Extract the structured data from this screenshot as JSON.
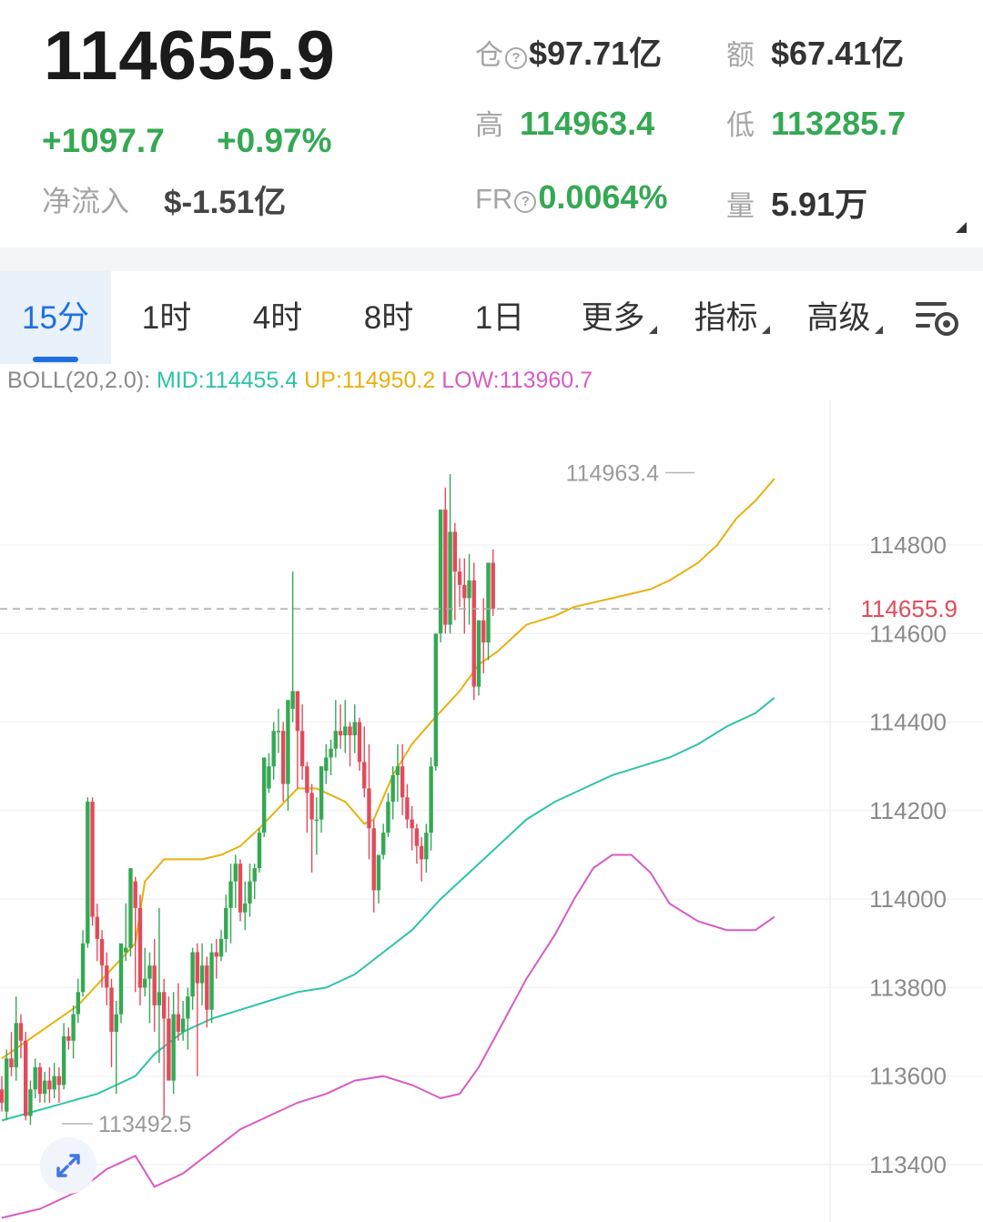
{
  "header": {
    "price": "114655.9",
    "change_abs": "+1097.7",
    "change_pct": "+0.97%",
    "net_inflow_label": "净流入",
    "net_inflow_value": "$-1.51亿",
    "open_interest_label": "仓",
    "open_interest_value": "$97.71亿",
    "turnover_label": "额",
    "turnover_value": "$67.41亿",
    "high_label": "高",
    "high_value": "114963.4",
    "low_label": "低",
    "low_value": "113285.7",
    "fr_label": "FR",
    "fr_value": "0.0064%",
    "volume_label": "量",
    "volume_value": "5.91万"
  },
  "tabs": [
    {
      "label": "15分",
      "active": true
    },
    {
      "label": "1时"
    },
    {
      "label": "4时"
    },
    {
      "label": "8时"
    },
    {
      "label": "1日"
    },
    {
      "label": "更多"
    },
    {
      "label": "指标"
    },
    {
      "label": "高级"
    }
  ],
  "boll": {
    "name": "BOLL(20,2.0):",
    "mid": "MID:114455.4",
    "up": "UP:114950.2",
    "low": "LOW:113960.7"
  },
  "colors": {
    "up": "#35a853",
    "down": "#e24b5b",
    "accent": "#1f6fe0",
    "boll_mid": "#2ec4a6",
    "boll_up": "#e8b10f",
    "boll_low": "#d85bc4"
  },
  "icons": [
    "settings-icon",
    "expand-icon"
  ],
  "chart_data": {
    "type": "candlestick",
    "y_ticks": [
      "114800",
      "114600",
      "114400",
      "114200",
      "114000",
      "113800",
      "113600",
      "113400"
    ],
    "ylim": [
      113280,
      115040
    ],
    "current_price_label": "114655.9",
    "max_label": "114963.4",
    "min_label": "113492.5",
    "candles": [
      [
        113570,
        113600,
        113540,
        113520
      ],
      [
        113520,
        113660,
        113640,
        113500
      ],
      [
        113640,
        113700,
        113620,
        113600
      ],
      [
        113620,
        113780,
        113720,
        113590
      ],
      [
        113720,
        113740,
        113680,
        113640
      ],
      [
        113680,
        113700,
        113510,
        113500
      ],
      [
        113510,
        113590,
        113570,
        113490
      ],
      [
        113570,
        113640,
        113620,
        113550
      ],
      [
        113620,
        113630,
        113560,
        113540
      ],
      [
        113560,
        113610,
        113590,
        113540
      ],
      [
        113590,
        113620,
        113570,
        113540
      ],
      [
        113570,
        113630,
        113600,
        113550
      ],
      [
        113600,
        113620,
        113580,
        113540
      ],
      [
        113580,
        113720,
        113690,
        113570
      ],
      [
        113690,
        113710,
        113680,
        113660
      ],
      [
        113680,
        113760,
        113740,
        113640
      ],
      [
        113740,
        113820,
        113790,
        113720
      ],
      [
        113790,
        113930,
        113900,
        113780
      ],
      [
        113900,
        114230,
        114220,
        113890
      ],
      [
        114220,
        114230,
        113960,
        113940
      ],
      [
        113960,
        113990,
        113910,
        113860
      ],
      [
        113910,
        113930,
        113850,
        113800
      ],
      [
        113850,
        113880,
        113800,
        113760
      ],
      [
        113800,
        113820,
        113700,
        113620
      ],
      [
        113700,
        113770,
        113740,
        113560
      ],
      [
        113740,
        113880,
        113900,
        113720
      ],
      [
        113880,
        113990,
        113890,
        113860
      ],
      [
        113890,
        114040,
        114070,
        113870
      ],
      [
        114040,
        114050,
        113980,
        113790
      ],
      [
        113980,
        114010,
        113800,
        113760
      ],
      [
        113800,
        113890,
        113820,
        113780
      ],
      [
        113820,
        113880,
        113850,
        113720
      ],
      [
        113850,
        113910,
        113760,
        113700
      ],
      [
        113760,
        113980,
        113790,
        113630
      ],
      [
        113790,
        113820,
        113730,
        113510
      ],
      [
        113730,
        113780,
        113590,
        113620
      ],
      [
        113590,
        113790,
        113740,
        113560
      ],
      [
        113740,
        113810,
        113700,
        113680
      ],
      [
        113700,
        113770,
        113730,
        113680
      ],
      [
        113730,
        113800,
        113780,
        113660
      ],
      [
        113780,
        113890,
        113880,
        113750
      ],
      [
        113880,
        113900,
        113810,
        113600
      ],
      [
        113810,
        113900,
        113850,
        113760
      ],
      [
        113850,
        113870,
        113750,
        113710
      ],
      [
        113750,
        113900,
        113880,
        113720
      ],
      [
        113880,
        113910,
        113870,
        113820
      ],
      [
        113870,
        113930,
        113910,
        113860
      ],
      [
        113910,
        114010,
        113980,
        113880
      ],
      [
        113980,
        114080,
        114040,
        113900
      ],
      [
        114040,
        114100,
        114080,
        113980
      ],
      [
        114080,
        114090,
        113970,
        113950
      ],
      [
        113970,
        114040,
        113990,
        113930
      ],
      [
        113990,
        114080,
        114040,
        113960
      ],
      [
        114040,
        114080,
        114070,
        114000
      ],
      [
        114070,
        114160,
        114150,
        114060
      ],
      [
        114150,
        114250,
        114320,
        114140
      ],
      [
        114250,
        114330,
        114300,
        114240
      ],
      [
        114300,
        114400,
        114380,
        114270
      ],
      [
        114380,
        114430,
        114380,
        114330
      ],
      [
        114380,
        114400,
        114260,
        114220
      ],
      [
        114260,
        114430,
        114450,
        114200
      ],
      [
        114430,
        114740,
        114470,
        114400
      ],
      [
        114470,
        114450,
        114380,
        114250
      ],
      [
        114380,
        114440,
        114300,
        114270
      ],
      [
        114300,
        114310,
        114240,
        114150
      ],
      [
        114240,
        114260,
        114180,
        114060
      ],
      [
        114180,
        114230,
        114180,
        114100
      ],
      [
        114180,
        114290,
        114300,
        114150
      ],
      [
        114290,
        114350,
        114320,
        114260
      ],
      [
        114320,
        114360,
        114340,
        114280
      ],
      [
        114340,
        114450,
        114380,
        114320
      ],
      [
        114380,
        114440,
        114370,
        114340
      ],
      [
        114370,
        114450,
        114390,
        114330
      ],
      [
        114390,
        114400,
        114370,
        114300
      ],
      [
        114370,
        114440,
        114400,
        114330
      ],
      [
        114400,
        114410,
        114310,
        114290
      ],
      [
        114310,
        114390,
        114250,
        114230
      ],
      [
        114250,
        114350,
        114160,
        114090
      ],
      [
        114160,
        114180,
        114020,
        113970
      ],
      [
        114020,
        114050,
        114100,
        113990
      ],
      [
        114100,
        114170,
        114150,
        114090
      ],
      [
        114150,
        114240,
        114220,
        114140
      ],
      [
        114220,
        114300,
        114280,
        114180
      ],
      [
        114280,
        114350,
        114300,
        114220
      ],
      [
        114300,
        114350,
        114230,
        114190
      ],
      [
        114230,
        114260,
        114180,
        114160
      ],
      [
        114180,
        114210,
        114160,
        114110
      ],
      [
        114160,
        114170,
        114120,
        114080
      ],
      [
        114120,
        114140,
        114090,
        114040
      ],
      [
        114090,
        114170,
        114150,
        114060
      ],
      [
        114150,
        114320,
        114300,
        114110
      ],
      [
        114300,
        114440,
        114600,
        114290
      ],
      [
        114600,
        114640,
        114880,
        114580
      ],
      [
        114880,
        114930,
        114620,
        114600
      ],
      [
        114620,
        114960,
        114830,
        114600
      ],
      [
        114830,
        114850,
        114740,
        114630
      ],
      [
        114740,
        114770,
        114710,
        114660
      ],
      [
        114710,
        114770,
        114680,
        114600
      ],
      [
        114680,
        114780,
        114720,
        114620
      ],
      [
        114720,
        114760,
        114480,
        114450
      ],
      [
        114480,
        114520,
        114630,
        114460
      ],
      [
        114630,
        114680,
        114580,
        114510
      ],
      [
        114580,
        114700,
        114760,
        114540
      ],
      [
        114760,
        114790,
        114656,
        114640
      ]
    ],
    "boll_up": [
      [
        0,
        113640
      ],
      [
        8,
        113700
      ],
      [
        16,
        113760
      ],
      [
        22,
        113830
      ],
      [
        28,
        113900
      ],
      [
        30,
        114040
      ],
      [
        34,
        114090
      ],
      [
        42,
        114090
      ],
      [
        46,
        114100
      ],
      [
        50,
        114120
      ],
      [
        54,
        114160
      ],
      [
        62,
        114250
      ],
      [
        66,
        114250
      ],
      [
        72,
        114220
      ],
      [
        76,
        114170
      ],
      [
        78,
        114180
      ],
      [
        80,
        114230
      ],
      [
        82,
        114280
      ],
      [
        86,
        114350
      ],
      [
        90,
        114400
      ],
      [
        96,
        114470
      ],
      [
        100,
        114530
      ],
      [
        104,
        114560
      ],
      [
        110,
        114620
      ],
      [
        116,
        114640
      ],
      [
        120,
        114660
      ],
      [
        124,
        114670
      ],
      [
        128,
        114680
      ],
      [
        132,
        114690
      ],
      [
        136,
        114700
      ],
      [
        140,
        114720
      ],
      [
        146,
        114760
      ],
      [
        150,
        114800
      ],
      [
        154,
        114860
      ],
      [
        158,
        114900
      ],
      [
        162,
        114950
      ]
    ],
    "boll_mid": [
      [
        0,
        113500
      ],
      [
        10,
        113530
      ],
      [
        20,
        113560
      ],
      [
        28,
        113600
      ],
      [
        32,
        113650
      ],
      [
        38,
        113700
      ],
      [
        44,
        113730
      ],
      [
        50,
        113750
      ],
      [
        56,
        113770
      ],
      [
        62,
        113790
      ],
      [
        68,
        113800
      ],
      [
        74,
        113830
      ],
      [
        80,
        113880
      ],
      [
        86,
        113930
      ],
      [
        92,
        114000
      ],
      [
        98,
        114060
      ],
      [
        104,
        114120
      ],
      [
        110,
        114180
      ],
      [
        116,
        114220
      ],
      [
        122,
        114250
      ],
      [
        128,
        114280
      ],
      [
        134,
        114300
      ],
      [
        140,
        114320
      ],
      [
        146,
        114350
      ],
      [
        152,
        114390
      ],
      [
        158,
        114420
      ],
      [
        162,
        114455
      ]
    ],
    "boll_low": [
      [
        0,
        113280
      ],
      [
        8,
        113300
      ],
      [
        16,
        113340
      ],
      [
        22,
        113390
      ],
      [
        28,
        113420
      ],
      [
        32,
        113350
      ],
      [
        38,
        113380
      ],
      [
        44,
        113430
      ],
      [
        50,
        113480
      ],
      [
        56,
        113510
      ],
      [
        62,
        113540
      ],
      [
        68,
        113560
      ],
      [
        74,
        113590
      ],
      [
        80,
        113600
      ],
      [
        86,
        113580
      ],
      [
        92,
        113550
      ],
      [
        96,
        113560
      ],
      [
        100,
        113620
      ],
      [
        104,
        113700
      ],
      [
        110,
        113820
      ],
      [
        116,
        113920
      ],
      [
        120,
        114000
      ],
      [
        124,
        114070
      ],
      [
        128,
        114100
      ],
      [
        132,
        114100
      ],
      [
        136,
        114060
      ],
      [
        140,
        113990
      ],
      [
        146,
        113950
      ],
      [
        152,
        113930
      ],
      [
        158,
        113930
      ],
      [
        162,
        113960
      ]
    ]
  }
}
